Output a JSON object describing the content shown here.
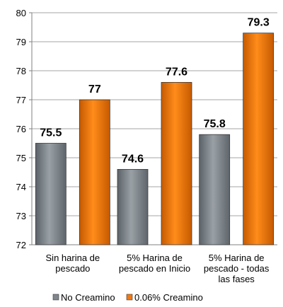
{
  "chart_data": {
    "type": "bar",
    "title": "",
    "xlabel": "",
    "ylabel": "",
    "ylim": [
      72,
      80
    ],
    "y_ticks": [
      "72",
      "73",
      "74",
      "75",
      "76",
      "77",
      "78",
      "79",
      "80"
    ],
    "categories": [
      [
        "Sin harina de",
        "pescado"
      ],
      [
        "5% Harina de",
        "pescado en Inicio"
      ],
      [
        "5% Harina de",
        "pescado - todas",
        "las fases"
      ]
    ],
    "series": [
      {
        "name": "No Creamino",
        "values": [
          75.5,
          74.6,
          75.8
        ],
        "labels": [
          "75.5",
          "74.6",
          "75.8"
        ],
        "color": "#7f868c"
      },
      {
        "name": "0.06% Creamino",
        "values": [
          77,
          77.6,
          79.3
        ],
        "labels": [
          "77",
          "77.6",
          "79.3"
        ],
        "color": "#f07a16"
      }
    ],
    "grid": true,
    "legend_position": "bottom"
  }
}
